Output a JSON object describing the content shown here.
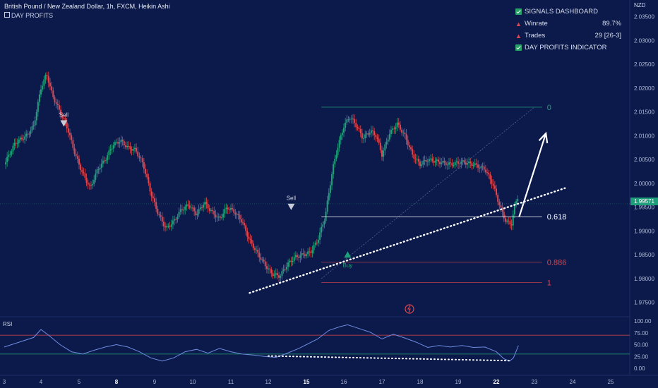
{
  "header": {
    "title": "British Pound / New Zealand Dollar, 1h, FXCM, Heikin Ashi",
    "indicator_icon": "square-icon",
    "indicator_label": "DAY PROFITS"
  },
  "dashboard": {
    "title": "SIGNALS DASHBOARD",
    "winrate_label": "Winrate",
    "winrate_value": "89.7%",
    "trades_label": "Trades",
    "trades_value": "29 [26-3]",
    "indicator_label": "DAY PROFITS INDICATOR"
  },
  "currency": "NZD",
  "current_price": "1.99571",
  "colors": {
    "background": "#0b1a4a",
    "bull": "#1fa27a",
    "bear": "#e0464e",
    "rsi_line": "#6f8be0",
    "fib_zero": "#1fa27a",
    "fib_mid": "#ffffff",
    "fib_low": "#e0464e"
  },
  "signals": [
    {
      "label": "Sell",
      "type": "sell",
      "x": 4.6,
      "y": 2.0125
    },
    {
      "label": "Sell",
      "type": "sell",
      "x": 10.6,
      "y": 1.995
    },
    {
      "label": "Buy",
      "type": "buy",
      "x": 12.1,
      "y": 1.985
    }
  ],
  "fib_levels": [
    {
      "label": "0",
      "price": 2.016
    },
    {
      "label": "0.618",
      "price": 1.993
    },
    {
      "label": "0.886",
      "price": 1.9835
    },
    {
      "label": "1",
      "price": 1.9792
    }
  ],
  "chart_data": {
    "type": "candlestick",
    "x_ticks": [
      "3",
      "4",
      "5",
      "8",
      "9",
      "10",
      "11",
      "12",
      "15",
      "16",
      "17",
      "18",
      "19",
      "22",
      "23",
      "24",
      "25"
    ],
    "y_ticks": [
      "2.03500",
      "2.03000",
      "2.02500",
      "2.02000",
      "2.01500",
      "2.01000",
      "2.00500",
      "2.00000",
      "1.99500",
      "1.99000",
      "1.98500",
      "1.98000",
      "1.97500"
    ],
    "ylim": [
      1.972,
      2.0385
    ],
    "price_path": [
      [
        3.0,
        2.004
      ],
      [
        3.3,
        2.0085
      ],
      [
        3.6,
        2.01
      ],
      [
        3.8,
        2.012
      ],
      [
        4.0,
        2.02
      ],
      [
        4.15,
        2.023
      ],
      [
        4.3,
        2.0185
      ],
      [
        4.5,
        2.015
      ],
      [
        4.7,
        2.0115
      ],
      [
        4.9,
        2.006
      ],
      [
        5.1,
        2.002
      ],
      [
        5.3,
        1.999
      ],
      [
        5.5,
        2.003
      ],
      [
        5.7,
        2.005
      ],
      [
        5.9,
        2.008
      ],
      [
        6.1,
        2.009
      ],
      [
        6.3,
        2.0075
      ],
      [
        6.5,
        2.007
      ],
      [
        6.7,
        2.004
      ],
      [
        6.9,
        1.998
      ],
      [
        7.1,
        1.9935
      ],
      [
        7.3,
        1.9905
      ],
      [
        7.5,
        1.992
      ],
      [
        7.7,
        1.9945
      ],
      [
        7.9,
        1.9955
      ],
      [
        8.1,
        1.9935
      ],
      [
        8.3,
        1.996
      ],
      [
        8.5,
        1.994
      ],
      [
        8.7,
        1.9925
      ],
      [
        8.9,
        1.995
      ],
      [
        9.1,
        1.994
      ],
      [
        9.3,
        1.992
      ],
      [
        9.5,
        1.988
      ],
      [
        9.7,
        1.9855
      ],
      [
        9.9,
        1.983
      ],
      [
        10.1,
        1.981
      ],
      [
        10.3,
        1.9805
      ],
      [
        10.5,
        1.983
      ],
      [
        10.7,
        1.9845
      ],
      [
        10.9,
        1.985
      ],
      [
        11.1,
        1.9855
      ],
      [
        11.3,
        1.988
      ],
      [
        11.5,
        1.993
      ],
      [
        11.7,
        2.003
      ],
      [
        11.85,
        2.008
      ],
      [
        12.0,
        2.012
      ],
      [
        12.15,
        2.014
      ],
      [
        12.3,
        2.0125
      ],
      [
        12.5,
        2.0095
      ],
      [
        12.7,
        2.011
      ],
      [
        12.85,
        2.01
      ],
      [
        13.0,
        2.006
      ],
      [
        13.2,
        2.0105
      ],
      [
        13.4,
        2.0125
      ],
      [
        13.6,
        2.01
      ],
      [
        13.8,
        2.006
      ],
      [
        14.0,
        2.004
      ],
      [
        14.2,
        2.005
      ],
      [
        14.5,
        2.0045
      ],
      [
        14.8,
        2.004
      ],
      [
        15.1,
        2.0045
      ],
      [
        15.4,
        2.004
      ],
      [
        15.7,
        2.003
      ],
      [
        15.9,
        2.0
      ],
      [
        16.1,
        1.995
      ],
      [
        16.25,
        1.992
      ],
      [
        16.4,
        1.9915
      ],
      [
        16.5,
        1.996
      ],
      [
        16.58,
        1.9975
      ]
    ],
    "rsi": {
      "label": "RSI",
      "ticks": [
        "100.00",
        "75.00",
        "50.00",
        "25.00",
        "0.00"
      ],
      "ylim": [
        0,
        100
      ],
      "upper_band": 70,
      "lower_band": 30,
      "path": [
        [
          3.0,
          45
        ],
        [
          3.4,
          55
        ],
        [
          3.8,
          65
        ],
        [
          4.0,
          82
        ],
        [
          4.2,
          70
        ],
        [
          4.5,
          50
        ],
        [
          4.8,
          35
        ],
        [
          5.1,
          30
        ],
        [
          5.4,
          38
        ],
        [
          5.7,
          45
        ],
        [
          6.0,
          50
        ],
        [
          6.3,
          45
        ],
        [
          6.6,
          35
        ],
        [
          6.9,
          22
        ],
        [
          7.2,
          15
        ],
        [
          7.5,
          22
        ],
        [
          7.8,
          35
        ],
        [
          8.1,
          40
        ],
        [
          8.4,
          32
        ],
        [
          8.7,
          42
        ],
        [
          9.0,
          35
        ],
        [
          9.3,
          30
        ],
        [
          9.6,
          28
        ],
        [
          9.9,
          25
        ],
        [
          10.2,
          23
        ],
        [
          10.5,
          32
        ],
        [
          10.8,
          42
        ],
        [
          11.0,
          50
        ],
        [
          11.3,
          62
        ],
        [
          11.6,
          80
        ],
        [
          11.9,
          88
        ],
        [
          12.1,
          92
        ],
        [
          12.4,
          84
        ],
        [
          12.7,
          76
        ],
        [
          13.0,
          62
        ],
        [
          13.3,
          72
        ],
        [
          13.6,
          64
        ],
        [
          13.9,
          55
        ],
        [
          14.2,
          44
        ],
        [
          14.5,
          48
        ],
        [
          14.8,
          45
        ],
        [
          15.1,
          48
        ],
        [
          15.4,
          44
        ],
        [
          15.7,
          45
        ],
        [
          16.0,
          35
        ],
        [
          16.2,
          20
        ],
        [
          16.35,
          15
        ],
        [
          16.45,
          22
        ],
        [
          16.58,
          48
        ]
      ],
      "divergence": [
        [
          10.0,
          26
        ],
        [
          16.4,
          16
        ]
      ]
    },
    "annotations": {
      "trendline": [
        [
          9.5,
          1.977
        ],
        [
          17.8,
          1.999
        ]
      ],
      "fib_diagonal": [
        [
          11.4,
          1.98
        ],
        [
          17.0,
          2.016
        ]
      ],
      "projection_arrow": [
        [
          16.6,
          1.993
        ],
        [
          17.3,
          2.0105
        ]
      ]
    }
  }
}
